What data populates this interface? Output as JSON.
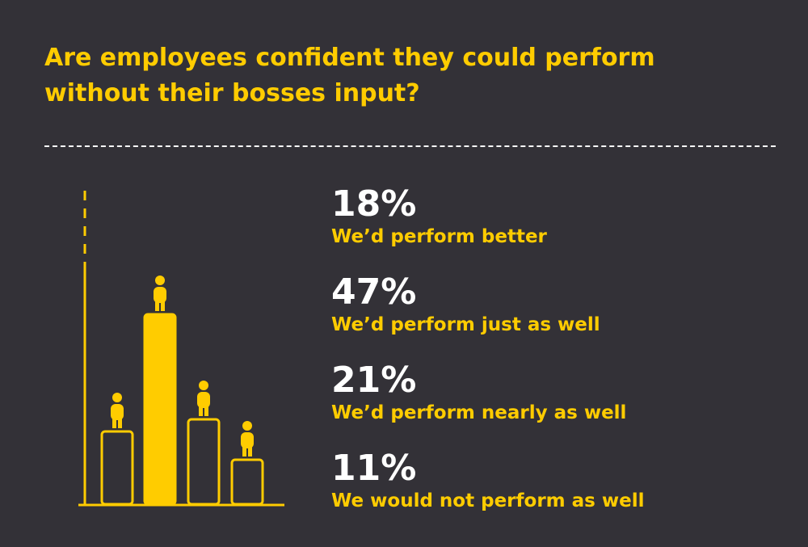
{
  "title": {
    "line1": "Are employees confident they could perform",
    "line2": "without their bosses input?"
  },
  "colors": {
    "background": "#333137",
    "accent": "#FFCC00",
    "value_text": "#FFFFFF"
  },
  "chart_data": {
    "type": "bar",
    "categories": [
      "We’d perform better",
      "We’d perform just as well",
      "We’d perform nearly as well",
      "We would not perform as well"
    ],
    "values": [
      18,
      47,
      21,
      11
    ],
    "value_labels": [
      "18%",
      "47%",
      "21%",
      "11%"
    ],
    "highlight_index": 1,
    "ylim": [
      0,
      60
    ]
  }
}
